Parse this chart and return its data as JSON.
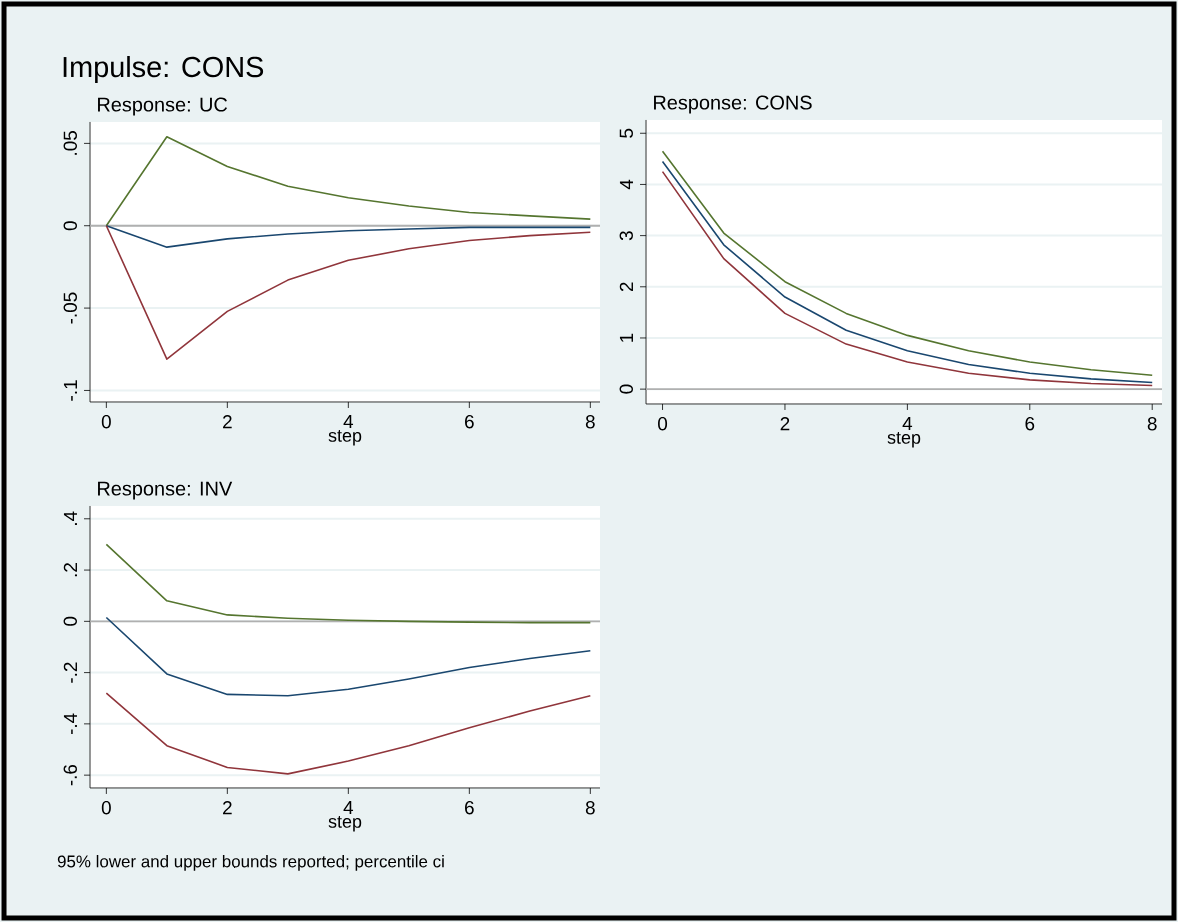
{
  "chart_data": [
    {
      "type": "line",
      "title": "Impulse: CONS",
      "subtitle": "Response: UC",
      "xlabel": "step",
      "x": [
        0,
        1,
        2,
        3,
        4,
        5,
        6,
        7,
        8
      ],
      "xlim": [
        -0.27,
        8.16
      ],
      "xticks": [
        0,
        2,
        4,
        6,
        8
      ],
      "ylim": [
        -0.107,
        0.063
      ],
      "yticks": [
        {
          "value": -0.1,
          "label": "-.1"
        },
        {
          "value": -0.05,
          "label": "-.05"
        },
        0,
        {
          "value": 0.05,
          "label": ".05"
        }
      ],
      "grid": "y",
      "ref_lines": [
        {
          "axis": "y",
          "value": 0,
          "color": "#b0b0b0"
        }
      ],
      "series": [
        {
          "color": "#55752f",
          "values": [
            0,
            0.054,
            0.036,
            0.024,
            0.017,
            0.012,
            0.008,
            0.006,
            0.004
          ]
        },
        {
          "color": "#1a476f",
          "values": [
            0,
            -0.013,
            -0.008,
            -0.005,
            -0.003,
            -0.002,
            -0.001,
            -0.001,
            -0.001
          ]
        },
        {
          "color": "#90353b",
          "values": [
            0,
            -0.081,
            -0.052,
            -0.033,
            -0.021,
            -0.014,
            -0.009,
            -0.006,
            -0.004
          ]
        }
      ]
    },
    {
      "type": "line",
      "subtitle": "Response: CONS",
      "xlabel": "step",
      "x": [
        0,
        1,
        2,
        3,
        4,
        5,
        6,
        7,
        8
      ],
      "xlim": [
        -0.27,
        8.16
      ],
      "xticks": [
        0,
        2,
        4,
        6,
        8
      ],
      "ylim": [
        -0.29,
        5.26
      ],
      "yticks": [
        0,
        1,
        2,
        3,
        4,
        5
      ],
      "grid": "y",
      "ref_lines": [
        {
          "axis": "y",
          "value": 0,
          "color": "#b0b0b0"
        }
      ],
      "series": [
        {
          "color": "#55752f",
          "values": [
            4.65,
            3.05,
            2.1,
            1.48,
            1.05,
            0.75,
            0.53,
            0.38,
            0.27
          ]
        },
        {
          "color": "#1a476f",
          "values": [
            4.45,
            2.82,
            1.8,
            1.15,
            0.75,
            0.48,
            0.31,
            0.2,
            0.13
          ]
        },
        {
          "color": "#90353b",
          "values": [
            4.25,
            2.55,
            1.48,
            0.88,
            0.53,
            0.31,
            0.18,
            0.11,
            0.07
          ]
        }
      ]
    },
    {
      "type": "line",
      "subtitle": "Response: INV",
      "xlabel": "step",
      "x": [
        0,
        1,
        2,
        3,
        4,
        5,
        6,
        7,
        8
      ],
      "xlim": [
        -0.27,
        8.16
      ],
      "xticks": [
        0,
        2,
        4,
        6,
        8
      ],
      "ylim": [
        -0.65,
        0.45
      ],
      "yticks": [
        {
          "value": -0.6,
          "label": "-.6"
        },
        {
          "value": -0.4,
          "label": "-.4"
        },
        {
          "value": -0.2,
          "label": "-.2"
        },
        0,
        {
          "value": 0.2,
          "label": ".2"
        },
        {
          "value": 0.4,
          "label": ".4"
        }
      ],
      "grid": "y",
      "ref_lines": [
        {
          "axis": "y",
          "value": 0,
          "color": "#b0b0b0"
        }
      ],
      "annotations": [
        "95% lower and upper bounds reported; percentile ci"
      ],
      "series": [
        {
          "color": "#55752f",
          "values": [
            0.3,
            0.08,
            0.025,
            0.012,
            0.004,
            0,
            -0.003,
            -0.005,
            -0.005
          ]
        },
        {
          "color": "#1a476f",
          "values": [
            0.015,
            -0.205,
            -0.285,
            -0.29,
            -0.265,
            -0.225,
            -0.18,
            -0.145,
            -0.115
          ]
        },
        {
          "color": "#90353b",
          "values": [
            -0.28,
            -0.485,
            -0.57,
            -0.595,
            -0.545,
            -0.485,
            -0.415,
            -0.35,
            -0.29
          ]
        }
      ]
    }
  ]
}
